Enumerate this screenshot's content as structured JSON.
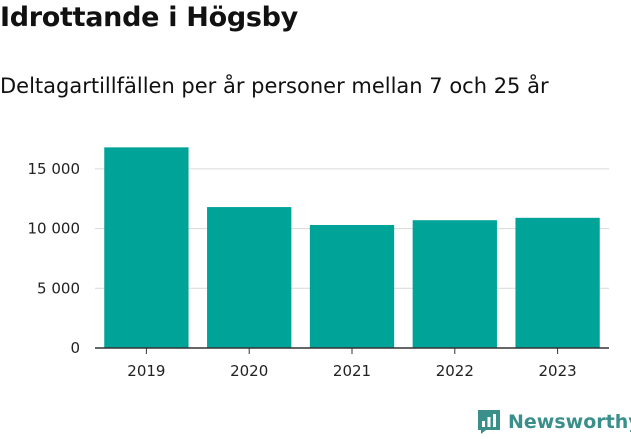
{
  "title": "Idrottande i Högsby",
  "subtitle": "Deltagartillfällen per år personer mellan 7 och 25 år",
  "brand": {
    "name": "Newsworthy",
    "icon": "newsworthy-logo-icon",
    "color": "#3a8f8a"
  },
  "chart_data": {
    "type": "bar",
    "categories": [
      "2019",
      "2020",
      "2021",
      "2022",
      "2023"
    ],
    "values": [
      16800,
      11800,
      10300,
      10700,
      10900
    ],
    "ylim": [
      0,
      17500
    ],
    "yticks": [
      0,
      5000,
      10000,
      15000
    ],
    "ytick_labels": [
      "0",
      "5 000",
      "10 000",
      "15 000"
    ],
    "grid": true,
    "bar_color": "#00a398",
    "grid_color": "#d9d9d9",
    "axis_color": "#333333"
  }
}
